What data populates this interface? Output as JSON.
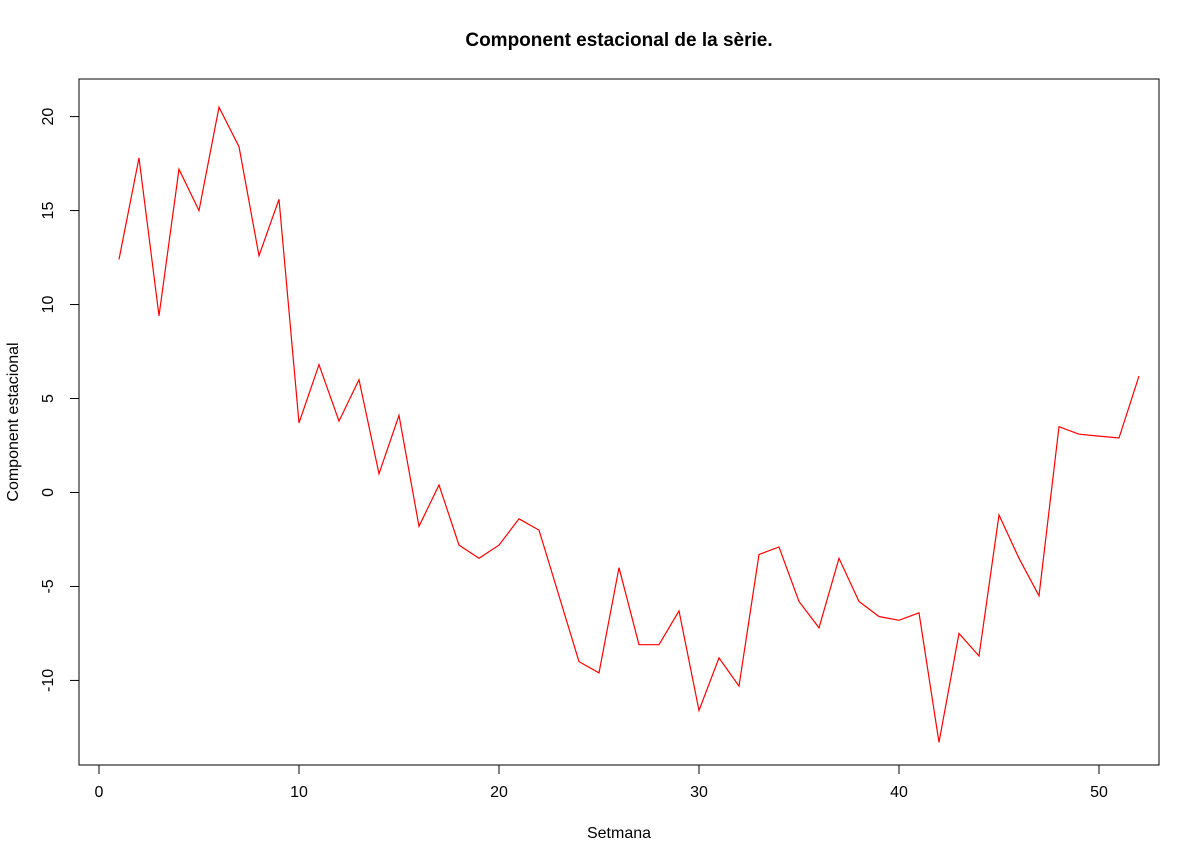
{
  "chart_data": {
    "type": "line",
    "title": "Component estacional de la sèrie.",
    "xlabel": "Setmana",
    "ylabel": "Component estacional",
    "xlim": [
      -1,
      53
    ],
    "ylim": [
      -14.5,
      22
    ],
    "x_ticks": [
      0,
      10,
      20,
      30,
      40,
      50
    ],
    "y_ticks": [
      -10,
      -5,
      0,
      5,
      10,
      15,
      20
    ],
    "grid": false,
    "legend": "none",
    "series": [
      {
        "color": "#ff0000",
        "x": [
          1,
          2,
          3,
          4,
          5,
          6,
          7,
          8,
          9,
          10,
          11,
          12,
          13,
          14,
          15,
          16,
          17,
          18,
          19,
          20,
          21,
          22,
          23,
          24,
          25,
          26,
          27,
          28,
          29,
          30,
          31,
          32,
          33,
          34,
          35,
          36,
          37,
          38,
          39,
          40,
          41,
          42,
          43,
          44,
          45,
          46,
          47,
          48,
          49,
          50,
          51,
          52
        ],
        "values": [
          12.4,
          17.8,
          9.4,
          17.2,
          15.0,
          20.5,
          18.4,
          12.6,
          15.6,
          3.7,
          6.8,
          3.8,
          6.0,
          1.0,
          4.1,
          -1.8,
          0.4,
          -2.8,
          -3.5,
          -2.8,
          -1.4,
          -2.0,
          -5.5,
          -9.0,
          -9.6,
          -4.0,
          -8.1,
          -8.1,
          -6.3,
          -11.6,
          -8.8,
          -10.3,
          -3.3,
          -2.9,
          -5.8,
          -7.2,
          -3.5,
          -5.8,
          -6.6,
          -6.8,
          -6.4,
          -13.3,
          -7.5,
          -8.7,
          -1.2,
          -3.5,
          -5.5,
          3.5,
          3.1,
          3.0,
          2.9,
          6.2
        ]
      }
    ]
  }
}
